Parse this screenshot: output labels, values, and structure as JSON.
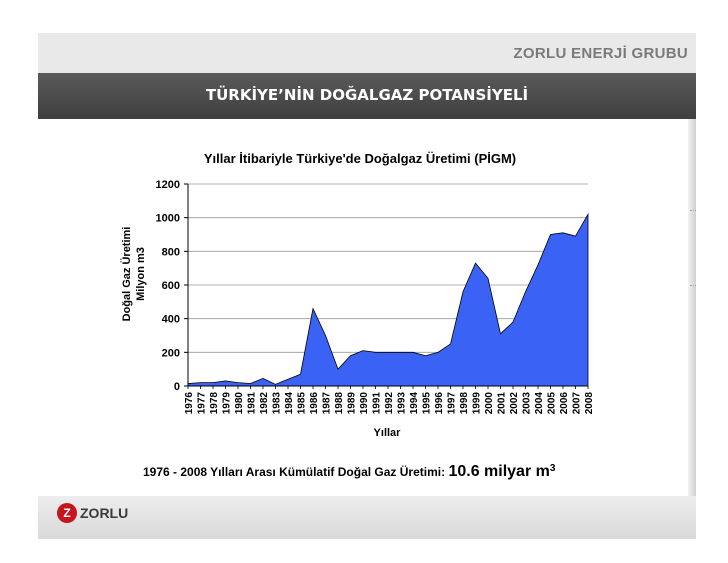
{
  "brand": "ZORLU ENERJİ GRUBU",
  "slide_title": "TÜRKİYE’NİN DOĞALGAZ POTANSİYELİ",
  "logo": {
    "letter": "Z",
    "text": "ZORLU"
  },
  "chart_data": {
    "type": "area",
    "title": "Yıllar İtibariyle Türkiye'de Doğalgaz Üretimi (PİGM)",
    "xlabel": "Yıllar",
    "ylabel": [
      "Doğal Gaz Üretimi",
      "Milyon m3"
    ],
    "ylim": [
      0,
      1200
    ],
    "yticks": [
      0,
      200,
      400,
      600,
      800,
      1000,
      1200
    ],
    "grid": true,
    "color": "#3a62f5",
    "x": [
      "1976",
      "1977",
      "1978",
      "1979",
      "1980",
      "1981",
      "1982",
      "1983",
      "1984",
      "1985",
      "1986",
      "1987",
      "1988",
      "1989",
      "1990",
      "1991",
      "1992",
      "1993",
      "1994",
      "1995",
      "1996",
      "1997",
      "1998",
      "1999",
      "2000",
      "2001",
      "2002",
      "2003",
      "2004",
      "2005",
      "2006",
      "2007",
      "2008"
    ],
    "values": [
      15,
      20,
      20,
      30,
      20,
      15,
      45,
      10,
      40,
      70,
      460,
      300,
      100,
      180,
      210,
      200,
      200,
      200,
      200,
      180,
      200,
      250,
      560,
      730,
      640,
      310,
      380,
      560,
      720,
      900,
      910,
      890,
      1020
    ]
  },
  "footnote": {
    "text": "1976 - 2008 Yılları Arası Kümülatif Doğal Gaz Üretimi:",
    "value": "10.6 milyar m",
    "sup": "3"
  }
}
